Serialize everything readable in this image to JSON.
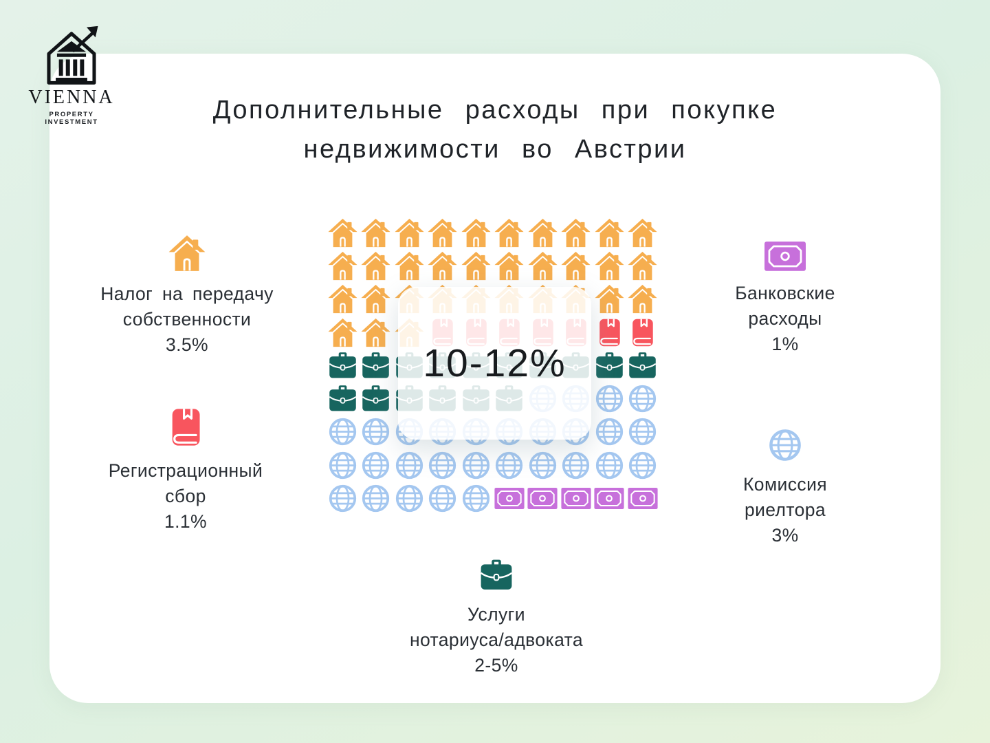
{
  "page": {
    "background_gradient": [
      "#e4f2e9",
      "#e7f3db"
    ],
    "card_color": "#ffffff"
  },
  "logo": {
    "name": "VIENNA",
    "tagline": "PROPERTY INVESTMENT",
    "icon": "bank-building-growth-arrow-icon"
  },
  "title": {
    "line1": "Дополнительные расходы при покупке",
    "line2": "недвижимости во Австрии"
  },
  "overlay": {
    "total": "10-12%"
  },
  "legend": {
    "transfer_tax": {
      "icon": "house-icon",
      "line1": "Налог на передачу",
      "line2": "собственности",
      "value": "3.5%"
    },
    "registration_fee": {
      "icon": "book-icon",
      "line1": "Регистрационный",
      "line2": "сбор",
      "value": "1.1%"
    },
    "bank_costs": {
      "icon": "banknote-icon",
      "line1": "Банковские",
      "line2": "расходы",
      "value": "1%"
    },
    "realtor_commission": {
      "icon": "globe-icon",
      "line1": "Комиссия",
      "line2": "риелтора",
      "value": "3%"
    },
    "notary_lawyer": {
      "icon": "briefcase-icon",
      "line1": "Услуги",
      "line2": "нотариуса/адвоката",
      "value": "2-5%"
    }
  },
  "chart_data": {
    "type": "pictogram",
    "title": "Дополнительные расходы при покупке недвижимости во Австрии",
    "total_label": "10-12%",
    "categories": [
      "Налог на передачу собственности",
      "Регистрационный сбор",
      "Услуги нотариуса/адвоката",
      "Комиссия риелтора",
      "Банковские расходы"
    ],
    "values": [
      "3.5%",
      "1.1%",
      "2-5%",
      "3%",
      "1%"
    ],
    "icons": [
      "house",
      "book",
      "briefcase",
      "globe",
      "banknote"
    ],
    "grid_size": {
      "columns": 10,
      "rows": 9
    },
    "grid_rows": [
      "HHHHHHHHHH",
      "HHHHHHHHHH",
      "HHHHHHHHHH",
      "HHHBBBBBBB",
      "CCCCCCCCCC",
      "CCCCCCGGGG",
      "GGGGGGGGGG",
      "GGGGGGGGGG",
      "GGGGGMMMMM"
    ],
    "icon_letter_map": {
      "H": "house",
      "B": "book",
      "C": "briefcase",
      "G": "globe",
      "M": "banknote"
    },
    "icon_counts": {
      "house": 33,
      "book": 7,
      "briefcase": 16,
      "globe": 29,
      "banknote": 5
    },
    "legend_position": "around",
    "colors": {
      "house": "#f6ae4f",
      "book": "#f8555e",
      "briefcase": "#17655f",
      "globe": "#a4c7f0",
      "banknote": "#c770db"
    }
  }
}
